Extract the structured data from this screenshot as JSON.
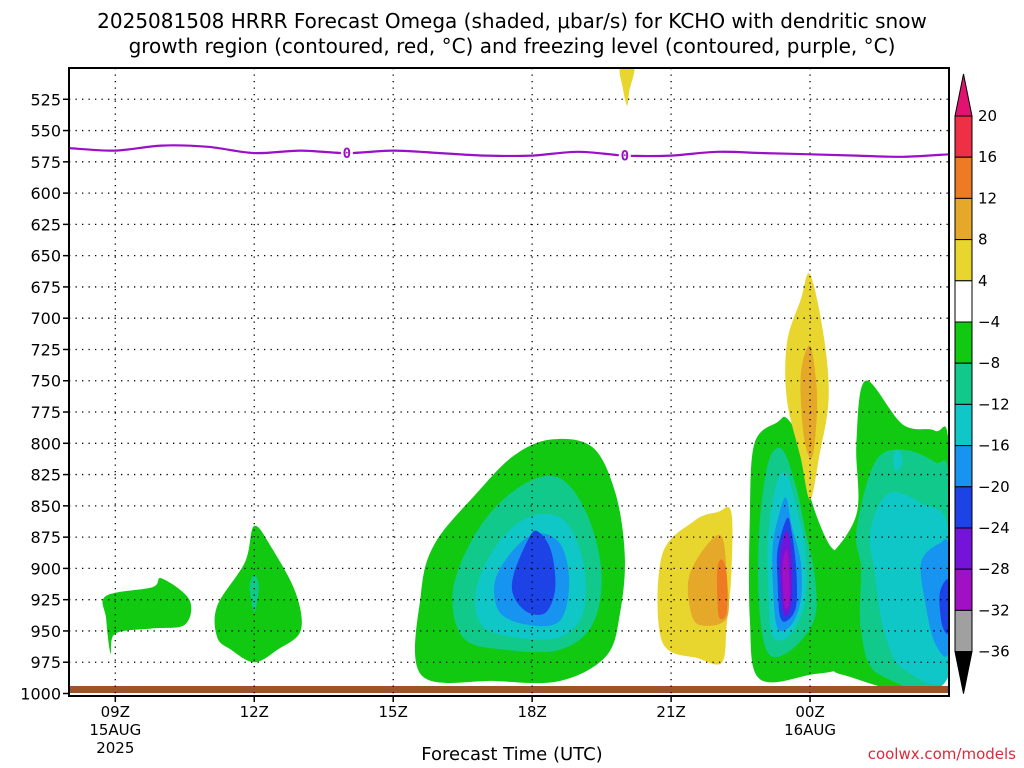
{
  "header": {
    "title_line1": "2025081508 HRRR Forecast Omega (shaded, μbar/s) for KCHO with dendritic snow",
    "title_line2": "growth region (contoured, red, °C) and freezing level (contoured, purple, °C)"
  },
  "footer": {
    "credit": "coolwx.com/models"
  },
  "chart_data": {
    "type": "heatmap",
    "xlabel": "Forecast Time (UTC)",
    "x_ticks": [
      {
        "hour": 9,
        "lines": [
          "09Z",
          "15AUG",
          "2025"
        ]
      },
      {
        "hour": 12,
        "lines": [
          "12Z"
        ]
      },
      {
        "hour": 15,
        "lines": [
          "15Z"
        ]
      },
      {
        "hour": 18,
        "lines": [
          "18Z"
        ]
      },
      {
        "hour": 21,
        "lines": [
          "21Z"
        ]
      },
      {
        "hour": 24,
        "lines": [
          "00Z",
          "16AUG"
        ]
      }
    ],
    "xlim_hours": [
      8,
      27
    ],
    "y_ticks": [
      525,
      550,
      575,
      600,
      625,
      650,
      675,
      700,
      725,
      750,
      775,
      800,
      825,
      850,
      875,
      900,
      925,
      950,
      975,
      1000
    ],
    "ylim_hPa": [
      1002,
      500
    ],
    "grid": true,
    "colorbar": {
      "labels": [
        20,
        16,
        12,
        8,
        4,
        -4,
        -8,
        -12,
        -16,
        -20,
        -24,
        -28,
        -32,
        -36
      ],
      "colors": [
        "#ee2f45",
        "#ee7a24",
        "#e5a828",
        "#e8d62f",
        "#ffffff",
        "#10c910",
        "#10c98a",
        "#10c7c7",
        "#1694f0",
        "#1d42e6",
        "#7414d8",
        "#a010c4",
        "#a0a0a0"
      ],
      "top_arrow_color": "#e01470",
      "bottom_arrow_color": "#000000"
    },
    "freezing_level": {
      "color": "#9a10c8",
      "label": "0",
      "label_hours": [
        14,
        20
      ],
      "points": [
        [
          8,
          564
        ],
        [
          9,
          566
        ],
        [
          10,
          562
        ],
        [
          11,
          563
        ],
        [
          12,
          568
        ],
        [
          13,
          566
        ],
        [
          14,
          568
        ],
        [
          15,
          566
        ],
        [
          16,
          568
        ],
        [
          17,
          570
        ],
        [
          18,
          570
        ],
        [
          19,
          567
        ],
        [
          20,
          570
        ],
        [
          21,
          570
        ],
        [
          22,
          567
        ],
        [
          23,
          568
        ],
        [
          24,
          569
        ],
        [
          25,
          570
        ],
        [
          26,
          571
        ],
        [
          27,
          569
        ]
      ]
    },
    "omega_regions": [
      {
        "level": -4,
        "points": [
          [
            8.8,
            922
          ],
          [
            9.8,
            915
          ],
          [
            10,
            908
          ],
          [
            10.6,
            925
          ],
          [
            10.5,
            945
          ],
          [
            9.8,
            948
          ],
          [
            9,
            952
          ],
          [
            8.9,
            968
          ],
          [
            8.8,
            940
          ]
        ]
      },
      {
        "level": -4,
        "points": [
          [
            11.2,
            930
          ],
          [
            11.8,
            895
          ],
          [
            12,
            866
          ],
          [
            12.4,
            885
          ],
          [
            12.9,
            920
          ],
          [
            13,
            950
          ],
          [
            12.5,
            965
          ],
          [
            12,
            975
          ],
          [
            11.5,
            965
          ],
          [
            11.2,
            955
          ]
        ]
      },
      {
        "level": -8,
        "points": [
          [
            11.9,
            915
          ],
          [
            12,
            905
          ],
          [
            12.1,
            915
          ],
          [
            12,
            935
          ]
        ]
      },
      {
        "level": -4,
        "points": [
          [
            15.6,
            920
          ],
          [
            15.9,
            880
          ],
          [
            16.8,
            840
          ],
          [
            17.6,
            810
          ],
          [
            18.4,
            797
          ],
          [
            19.3,
            803
          ],
          [
            19.8,
            840
          ],
          [
            20,
            890
          ],
          [
            19.9,
            935
          ],
          [
            19.6,
            970
          ],
          [
            18.6,
            990
          ],
          [
            17.2,
            990
          ],
          [
            15.6,
            985
          ]
        ]
      },
      {
        "level": -8,
        "points": [
          [
            16.3,
            915
          ],
          [
            16.9,
            865
          ],
          [
            17.8,
            833
          ],
          [
            18.6,
            828
          ],
          [
            19.2,
            858
          ],
          [
            19.5,
            905
          ],
          [
            19.3,
            945
          ],
          [
            18.6,
            965
          ],
          [
            17.4,
            965
          ],
          [
            16.5,
            955
          ]
        ]
      },
      {
        "level": -12,
        "points": [
          [
            16.8,
            915
          ],
          [
            17.3,
            878
          ],
          [
            18,
            858
          ],
          [
            18.7,
            862
          ],
          [
            19.1,
            895
          ],
          [
            19.1,
            935
          ],
          [
            18.6,
            955
          ],
          [
            17.6,
            955
          ],
          [
            16.9,
            945
          ]
        ]
      },
      {
        "level": -16,
        "points": [
          [
            17.2,
            910
          ],
          [
            17.6,
            885
          ],
          [
            18.1,
            872
          ],
          [
            18.6,
            880
          ],
          [
            18.8,
            910
          ],
          [
            18.6,
            942
          ],
          [
            17.9,
            945
          ],
          [
            17.3,
            935
          ]
        ]
      },
      {
        "level": -20,
        "points": [
          [
            17.6,
            905
          ],
          [
            17.9,
            878
          ],
          [
            18.1,
            870
          ],
          [
            18.4,
            885
          ],
          [
            18.5,
            915
          ],
          [
            18.3,
            935
          ],
          [
            17.9,
            935
          ],
          [
            17.6,
            922
          ]
        ]
      },
      {
        "level": 4,
        "points": [
          [
            20.8,
            890
          ],
          [
            21.5,
            862
          ],
          [
            22,
            855
          ],
          [
            22.3,
            855
          ],
          [
            22.3,
            905
          ],
          [
            22.2,
            945
          ],
          [
            22.1,
            975
          ],
          [
            21.6,
            972
          ],
          [
            20.8,
            958
          ]
        ]
      },
      {
        "level": 8,
        "points": [
          [
            21.4,
            905
          ],
          [
            21.8,
            880
          ],
          [
            22.1,
            875
          ],
          [
            22.2,
            905
          ],
          [
            22.2,
            940
          ],
          [
            21.6,
            945
          ],
          [
            21.4,
            930
          ]
        ]
      },
      {
        "level": 12,
        "points": [
          [
            22,
            900
          ],
          [
            22.1,
            893
          ],
          [
            22.2,
            905
          ],
          [
            22.2,
            935
          ],
          [
            22.05,
            940
          ],
          [
            22,
            925
          ]
        ]
      },
      {
        "level": -4,
        "points": [
          [
            22.7,
            860
          ],
          [
            22.8,
            800
          ],
          [
            23.3,
            783
          ],
          [
            23.5,
            780
          ],
          [
            23.8,
            800
          ],
          [
            24,
            842
          ],
          [
            24.4,
            880
          ],
          [
            24.8,
            895
          ],
          [
            25,
            930
          ],
          [
            24.8,
            975
          ],
          [
            24,
            985
          ],
          [
            22.9,
            988
          ],
          [
            22.7,
            940
          ]
        ]
      },
      {
        "level": -8,
        "points": [
          [
            22.9,
            870
          ],
          [
            23.1,
            815
          ],
          [
            23.4,
            805
          ],
          [
            23.7,
            835
          ],
          [
            23.9,
            870
          ],
          [
            24.1,
            905
          ],
          [
            24.1,
            940
          ],
          [
            23.6,
            965
          ],
          [
            23.1,
            968
          ],
          [
            22.9,
            930
          ]
        ]
      },
      {
        "level": -12,
        "points": [
          [
            23.1,
            870
          ],
          [
            23.3,
            830
          ],
          [
            23.5,
            825
          ],
          [
            23.7,
            850
          ],
          [
            23.9,
            885
          ],
          [
            23.9,
            925
          ],
          [
            23.6,
            952
          ],
          [
            23.2,
            955
          ],
          [
            23.1,
            920
          ]
        ]
      },
      {
        "level": -16,
        "points": [
          [
            23.2,
            880
          ],
          [
            23.4,
            848
          ],
          [
            23.5,
            845
          ],
          [
            23.6,
            865
          ],
          [
            23.8,
            895
          ],
          [
            23.8,
            925
          ],
          [
            23.6,
            945
          ],
          [
            23.3,
            948
          ],
          [
            23.2,
            915
          ]
        ]
      },
      {
        "level": -20,
        "points": [
          [
            23.3,
            885
          ],
          [
            23.5,
            860
          ],
          [
            23.6,
            870
          ],
          [
            23.7,
            900
          ],
          [
            23.7,
            930
          ],
          [
            23.5,
            942
          ],
          [
            23.35,
            938
          ],
          [
            23.3,
            910
          ]
        ]
      },
      {
        "level": -24,
        "points": [
          [
            23.35,
            890
          ],
          [
            23.5,
            870
          ],
          [
            23.6,
            890
          ],
          [
            23.6,
            925
          ],
          [
            23.5,
            938
          ],
          [
            23.4,
            930
          ]
        ]
      },
      {
        "level": -28,
        "points": [
          [
            23.4,
            900
          ],
          [
            23.5,
            885
          ],
          [
            23.55,
            905
          ],
          [
            23.55,
            928
          ],
          [
            23.45,
            930
          ]
        ]
      },
      {
        "level": 4,
        "points": [
          [
            23.5,
            720
          ],
          [
            23.8,
            685
          ],
          [
            24,
            665
          ],
          [
            24.3,
            715
          ],
          [
            24.4,
            765
          ],
          [
            24.2,
            810
          ],
          [
            24,
            845
          ],
          [
            23.8,
            812
          ],
          [
            23.5,
            765
          ]
        ]
      },
      {
        "level": 8,
        "points": [
          [
            23.8,
            745
          ],
          [
            24,
            722
          ],
          [
            24.15,
            760
          ],
          [
            24.1,
            800
          ],
          [
            24,
            812
          ],
          [
            23.85,
            790
          ]
        ]
      },
      {
        "level": -4,
        "points": [
          [
            24,
            878
          ],
          [
            24.3,
            893
          ],
          [
            25,
            857
          ],
          [
            25,
            800
          ],
          [
            25.2,
            750
          ],
          [
            26,
            785
          ],
          [
            26.7,
            790
          ],
          [
            27,
            805
          ],
          [
            27,
            985
          ],
          [
            24.7,
            985
          ],
          [
            24.5,
            965
          ],
          [
            24.5,
            930
          ],
          [
            24.2,
            905
          ]
        ]
      },
      {
        "level": -8,
        "points": [
          [
            25,
            870
          ],
          [
            25.4,
            815
          ],
          [
            26,
            805
          ],
          [
            26.7,
            815
          ],
          [
            27,
            830
          ],
          [
            27,
            985
          ],
          [
            25.5,
            985
          ],
          [
            25.1,
            950
          ],
          [
            25.1,
            900
          ]
        ]
      },
      {
        "level": -12,
        "points": [
          [
            25.3,
            870
          ],
          [
            25.7,
            840
          ],
          [
            26.4,
            848
          ],
          [
            27,
            870
          ],
          [
            27,
            985
          ],
          [
            26,
            980
          ],
          [
            25.6,
            950
          ],
          [
            25.4,
            905
          ]
        ]
      },
      {
        "level": -16,
        "points": [
          [
            26.4,
            895
          ],
          [
            26.8,
            880
          ],
          [
            27,
            885
          ],
          [
            27,
            965
          ],
          [
            26.7,
            960
          ],
          [
            26.5,
            930
          ]
        ]
      },
      {
        "level": -20,
        "points": [
          [
            26.8,
            920
          ],
          [
            27,
            910
          ],
          [
            27,
            950
          ],
          [
            26.85,
            945
          ]
        ]
      },
      {
        "level": -12,
        "points": [
          [
            25.8,
            810
          ],
          [
            25.9,
            805
          ],
          [
            26,
            815
          ],
          [
            25.85,
            822
          ]
        ]
      },
      {
        "level": 4,
        "points": [
          [
            19.9,
            500
          ],
          [
            20.2,
            500
          ],
          [
            20.1,
            518
          ],
          [
            20.05,
            530
          ],
          [
            19.95,
            515
          ]
        ]
      }
    ]
  }
}
